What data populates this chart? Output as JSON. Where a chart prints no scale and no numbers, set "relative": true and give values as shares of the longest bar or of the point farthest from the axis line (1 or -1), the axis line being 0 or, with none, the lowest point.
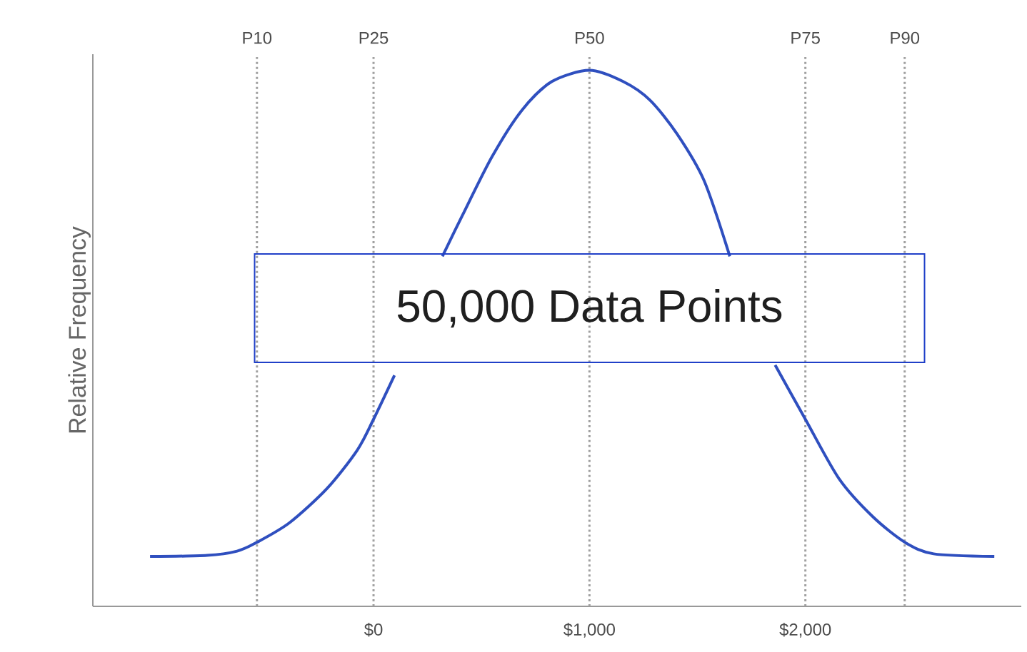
{
  "chart_data": {
    "type": "line",
    "ylabel": "Relative Frequency",
    "relative": true,
    "xlim": [
      -1300,
      3000
    ],
    "xticks": [
      {
        "value": 0,
        "label": "$0"
      },
      {
        "value": 1000,
        "label": "$1,000"
      },
      {
        "value": 2000,
        "label": "$2,000"
      }
    ],
    "series": [
      {
        "color": "#2f4fbf",
        "x": [
          -1035,
          -771,
          -632,
          -542,
          -389,
          -215,
          -76,
          0,
          97,
          150,
          319,
          410,
          549,
          688,
          826,
          1000,
          1156,
          1281,
          1406,
          1531,
          1650,
          1750,
          1860,
          2000,
          2156,
          2313,
          2463,
          2594,
          2875
        ],
        "values": [
          0.093,
          0.095,
          0.103,
          0.119,
          0.156,
          0.22,
          0.291,
          0.349,
          0.431,
          null,
          0.653,
          0.728,
          0.839,
          0.926,
          0.979,
          1.0,
          0.979,
          0.944,
          0.881,
          0.794,
          0.653,
          null,
          0.45,
          0.349,
          0.238,
          0.167,
          0.119,
          0.098,
          0.093
        ]
      }
    ],
    "ref_lines": [
      {
        "axis": "x",
        "value": -540,
        "label": "P10",
        "color": "#a0a0a0",
        "line_style": "dotted"
      },
      {
        "axis": "x",
        "value": 0,
        "label": "P25",
        "color": "#a0a0a0",
        "line_style": "dotted"
      },
      {
        "axis": "x",
        "value": 1000,
        "label": "P50",
        "color": "#a0a0a0",
        "line_style": "dotted"
      },
      {
        "axis": "x",
        "value": 2000,
        "label": "P75",
        "color": "#a0a0a0",
        "line_style": "dotted"
      },
      {
        "axis": "x",
        "value": 2460,
        "label": "P90",
        "color": "#a0a0a0",
        "line_style": "dotted"
      }
    ],
    "annotations": [
      "50,000 Data Points"
    ]
  }
}
